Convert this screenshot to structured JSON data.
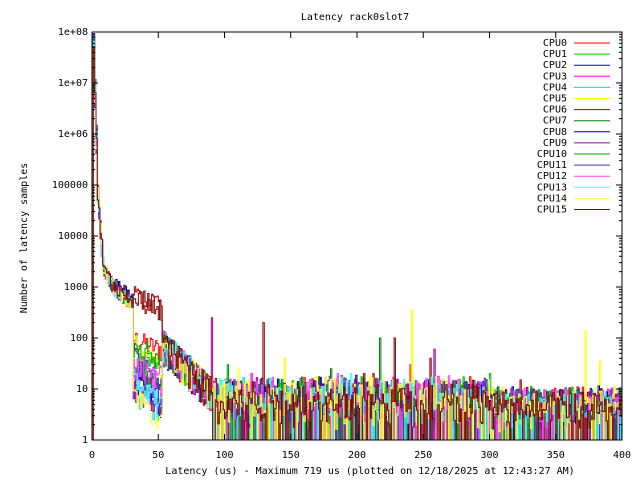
{
  "chart_data": {
    "type": "line",
    "title": "Latency rack0slot7",
    "xlabel": "Latency (us) - Maximum 719 us (plotted on 12/18/2025 at 12:43:27 AM)",
    "ylabel": "Number of latency samples",
    "yscale": "log",
    "xlim": [
      0,
      400
    ],
    "ylim": [
      1,
      100000000
    ],
    "x_ticks": [
      0,
      50,
      100,
      150,
      200,
      250,
      300,
      350,
      400
    ],
    "y_ticks": [
      {
        "value": 1,
        "label": "1"
      },
      {
        "value": 10,
        "label": "10"
      },
      {
        "value": 100,
        "label": "100"
      },
      {
        "value": 1000,
        "label": "1000"
      },
      {
        "value": 10000,
        "label": "10000"
      },
      {
        "value": 100000,
        "label": "100000"
      },
      {
        "value": 1000000,
        "label": "1e+06"
      },
      {
        "value": 10000000,
        "label": "1e+07"
      },
      {
        "value": 100000000,
        "label": "1e+08"
      }
    ],
    "legend_position": "top-right",
    "grid": false,
    "series": [
      {
        "name": "CPU0",
        "color": "#ff0000",
        "spikes": [
          [
            240,
            30
          ]
        ]
      },
      {
        "name": "CPU1",
        "color": "#00c000",
        "spikes": [
          [
            300,
            20
          ]
        ]
      },
      {
        "name": "CPU2",
        "color": "#0000ff",
        "spikes": [
          [
            155,
            10
          ]
        ]
      },
      {
        "name": "CPU3",
        "color": "#ff00ff",
        "spikes": [
          [
            120,
            20
          ]
        ]
      },
      {
        "name": "CPU4",
        "color": "#00e0e0",
        "spikes": [
          [
            70,
            50
          ]
        ]
      },
      {
        "name": "CPU5",
        "color": "#ffff00",
        "spikes": [
          [
            241,
            350
          ],
          [
            372,
            140
          ],
          [
            383,
            35
          ],
          [
            145,
            40
          ]
        ]
      },
      {
        "name": "CPU6",
        "color": "#a00000",
        "spikes": [
          [
            129,
            200
          ],
          [
            212,
            20
          ],
          [
            255,
            40
          ],
          [
            323,
            15
          ]
        ]
      },
      {
        "name": "CPU7",
        "color": "#008000",
        "spikes": [
          [
            217,
            100
          ],
          [
            180,
            25
          ]
        ]
      },
      {
        "name": "CPU8",
        "color": "#000080",
        "spikes": [
          [
            60,
            25
          ]
        ]
      },
      {
        "name": "CPU9",
        "color": "#a000a0",
        "spikes": [
          [
            90,
            250
          ],
          [
            258,
            60
          ]
        ]
      },
      {
        "name": "CPU10",
        "color": "#00a000",
        "spikes": [
          [
            102,
            30
          ]
        ]
      },
      {
        "name": "CPU11",
        "color": "#4040a0",
        "spikes": [
          [
            132,
            15
          ]
        ]
      },
      {
        "name": "CPU12",
        "color": "#ff40ff",
        "spikes": [
          [
            185,
            20
          ]
        ]
      },
      {
        "name": "CPU13",
        "color": "#40ffff",
        "spikes": [
          [
            195,
            20
          ]
        ]
      },
      {
        "name": "CPU14",
        "color": "#ffff40",
        "spikes": [
          [
            110,
            25
          ]
        ]
      },
      {
        "name": "CPU15",
        "color": "#800000",
        "spikes": [
          [
            228,
            100
          ],
          [
            205,
            20
          ]
        ]
      }
    ]
  }
}
